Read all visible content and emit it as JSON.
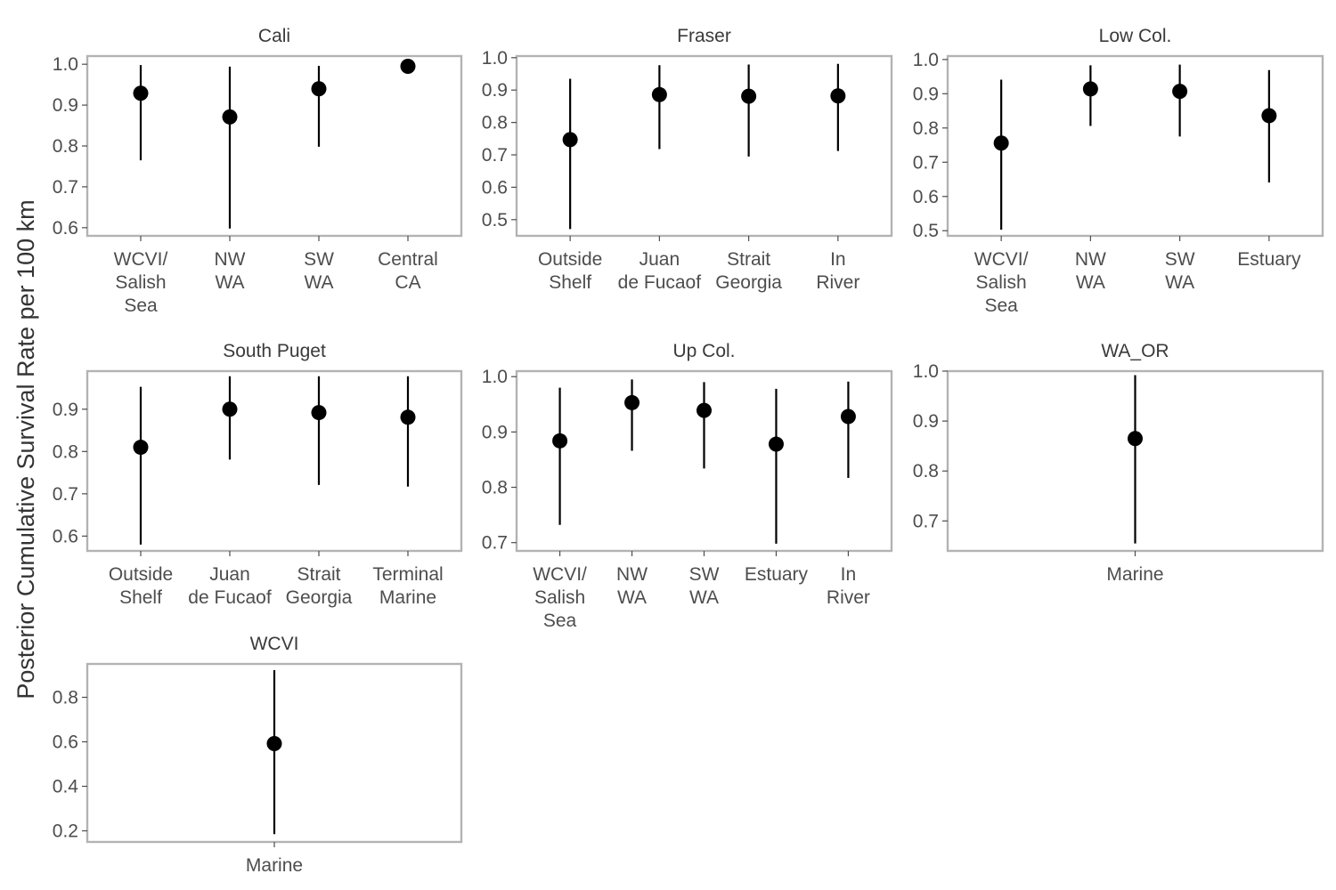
{
  "chart_data": {
    "type": "pointrange",
    "ylabel": "Posterior Cumulative Survival Rate per 100 km",
    "xlabel": "",
    "panels": [
      {
        "title": "Cali",
        "ylim": [
          0.58,
          1.02
        ],
        "yticks": [
          "0.6",
          "0.7",
          "0.8",
          "0.9",
          "1.0"
        ],
        "categories": [
          "WCVI/\nSalish\nSea",
          "NW\nWA",
          "SW\nWA",
          "Central\nCA"
        ],
        "points": [
          {
            "y": 0.929,
            "lower": 0.765,
            "upper": 0.998
          },
          {
            "y": 0.871,
            "lower": 0.598,
            "upper": 0.994
          },
          {
            "y": 0.94,
            "lower": 0.798,
            "upper": 0.996
          },
          {
            "y": 0.995,
            "lower": 0.992,
            "upper": 0.999
          }
        ]
      },
      {
        "title": "Fraser",
        "ylim": [
          0.45,
          1.005
        ],
        "yticks": [
          "0.5",
          "0.6",
          "0.7",
          "0.8",
          "0.9",
          "1.0"
        ],
        "categories": [
          "Outside\nShelf",
          "Juan\nde Fucaof",
          "Strait\nGeorgia",
          "In\nRiver"
        ],
        "points": [
          {
            "y": 0.747,
            "lower": 0.471,
            "upper": 0.935
          },
          {
            "y": 0.886,
            "lower": 0.718,
            "upper": 0.977
          },
          {
            "y": 0.881,
            "lower": 0.695,
            "upper": 0.979
          },
          {
            "y": 0.882,
            "lower": 0.712,
            "upper": 0.981
          }
        ]
      },
      {
        "title": "Low Col.",
        "ylim": [
          0.485,
          1.01
        ],
        "yticks": [
          "0.5",
          "0.6",
          "0.7",
          "0.8",
          "0.9",
          "1.0"
        ],
        "categories": [
          "WCVI/\nSalish\nSea",
          "NW\nWA",
          "SW\nWA",
          "Estuary"
        ],
        "points": [
          {
            "y": 0.756,
            "lower": 0.503,
            "upper": 0.941
          },
          {
            "y": 0.914,
            "lower": 0.806,
            "upper": 0.983
          },
          {
            "y": 0.907,
            "lower": 0.775,
            "upper": 0.985
          },
          {
            "y": 0.836,
            "lower": 0.641,
            "upper": 0.969
          }
        ]
      },
      {
        "title": "South Puget",
        "ylim": [
          0.565,
          0.99
        ],
        "yticks": [
          "0.6",
          "0.7",
          "0.8",
          "0.9"
        ],
        "categories": [
          "Outside\nShelf",
          "Juan\nde Fucaof",
          "Strait\nGeorgia",
          "Terminal\nMarine"
        ],
        "points": [
          {
            "y": 0.81,
            "lower": 0.58,
            "upper": 0.953
          },
          {
            "y": 0.9,
            "lower": 0.781,
            "upper": 0.978
          },
          {
            "y": 0.892,
            "lower": 0.721,
            "upper": 0.978
          },
          {
            "y": 0.881,
            "lower": 0.717,
            "upper": 0.978
          }
        ]
      },
      {
        "title": "Up Col.",
        "ylim": [
          0.685,
          1.01
        ],
        "yticks": [
          "0.7",
          "0.8",
          "0.9",
          "1.0"
        ],
        "categories": [
          "WCVI/\nSalish\nSea",
          "NW\nWA",
          "SW\nWA",
          "Estuary",
          "In\nRiver"
        ],
        "points": [
          {
            "y": 0.884,
            "lower": 0.732,
            "upper": 0.98
          },
          {
            "y": 0.953,
            "lower": 0.866,
            "upper": 0.995
          },
          {
            "y": 0.939,
            "lower": 0.834,
            "upper": 0.99
          },
          {
            "y": 0.878,
            "lower": 0.698,
            "upper": 0.978
          },
          {
            "y": 0.928,
            "lower": 0.817,
            "upper": 0.991
          }
        ]
      },
      {
        "title": "WA_OR",
        "ylim": [
          0.64,
          1.0
        ],
        "yticks": [
          "0.7",
          "0.8",
          "0.9",
          "1.0"
        ],
        "categories": [
          "Marine"
        ],
        "points": [
          {
            "y": 0.865,
            "lower": 0.655,
            "upper": 0.992
          }
        ]
      },
      {
        "title": "WCVI",
        "ylim": [
          0.15,
          0.95
        ],
        "yticks": [
          "0.2",
          "0.4",
          "0.6",
          "0.8"
        ],
        "categories": [
          "Marine"
        ],
        "points": [
          {
            "y": 0.592,
            "lower": 0.185,
            "upper": 0.922
          }
        ]
      }
    ]
  }
}
